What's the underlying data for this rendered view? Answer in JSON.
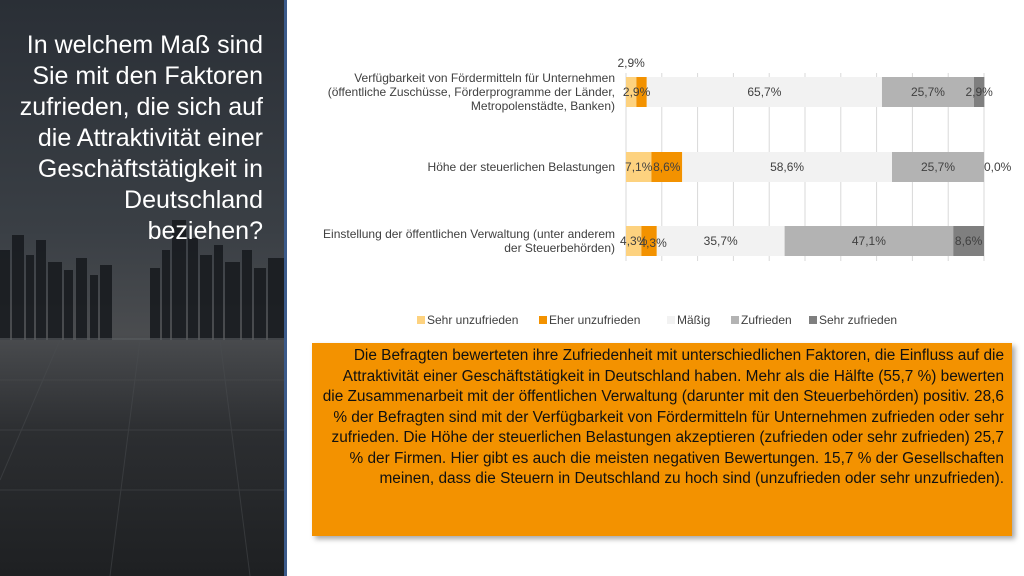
{
  "slide": {
    "title": "In welchem Maß sind Sie mit den Faktoren zufrieden, die sich auf die Attraktivität einer Geschäftstätigkeit in Deutschland beziehen?",
    "summary": "Die Befragten bewerteten ihre Zufriedenheit mit unterschiedlichen Faktoren, die Einfluss auf die Attraktivität einer Geschäftstätigkeit in Deutschland haben.  Mehr als die Hälfte (55,7 %) bewerten die Zusammenarbeit mit der öffentlichen Verwaltung (darunter mit den Steuerbehörden) positiv. 28,6 % der Befragten sind mit der Verfügbarkeit von Fördermitteln für Unternehmen zufrieden oder sehr zufrieden. Die Höhe der steuerlichen Belastungen akzeptieren (zufrieden oder sehr zufrieden) 25,7 % der Firmen. Hier gibt es auch die meisten negativen Bewertungen. 15,7 % der Gesellschaften meinen, dass die Steuern in Deutschland zu hoch sind (unzufrieden oder sehr unzufrieden)."
  },
  "colors": {
    "sehr_unzufrieden": "#fdd27f",
    "eher_unzufrieden": "#f39200",
    "maessig": "#f2f2f2",
    "zufrieden": "#b3b3b3",
    "sehr_zufrieden": "#7f7f7f",
    "accent_box": "#f39200"
  },
  "chart_data": {
    "type": "bar",
    "orientation": "horizontal",
    "stacked": true,
    "categories": [
      [
        "Verfügbarkeit von Fördermitteln für Unternehmen",
        "(öffentliche Zuschüsse, Förderprogramme der Länder,",
        "Metropolenstädte, Banken)"
      ],
      [
        "Höhe der steuerlichen Belastungen"
      ],
      [
        "Einstellung der öffentlichen Verwaltung (unter anderem",
        "der Steuerbehörden)"
      ]
    ],
    "series": [
      {
        "name": "Sehr unzufrieden",
        "values": [
          2.9,
          7.1,
          4.3
        ],
        "labels": [
          "2,9%",
          "7,1%",
          "4,3%"
        ]
      },
      {
        "name": "Eher unzufrieden",
        "values": [
          2.9,
          8.6,
          4.3
        ],
        "labels": [
          "2,9%",
          "8,6%",
          "4,3%"
        ]
      },
      {
        "name": "Mäßig",
        "values": [
          65.7,
          58.6,
          35.7
        ],
        "labels": [
          "65,7%",
          "58,6%",
          "35,7%"
        ]
      },
      {
        "name": "Zufrieden",
        "values": [
          25.7,
          25.7,
          47.1
        ],
        "labels": [
          "25,7%",
          "25,7%",
          "47,1%"
        ]
      },
      {
        "name": "Sehr zufrieden",
        "values": [
          2.9,
          0.0,
          8.6
        ],
        "labels": [
          "2,9%",
          "0,0%",
          "8,6%"
        ]
      }
    ],
    "xlim": [
      0,
      100
    ],
    "grid": true,
    "legend": "bottom"
  }
}
